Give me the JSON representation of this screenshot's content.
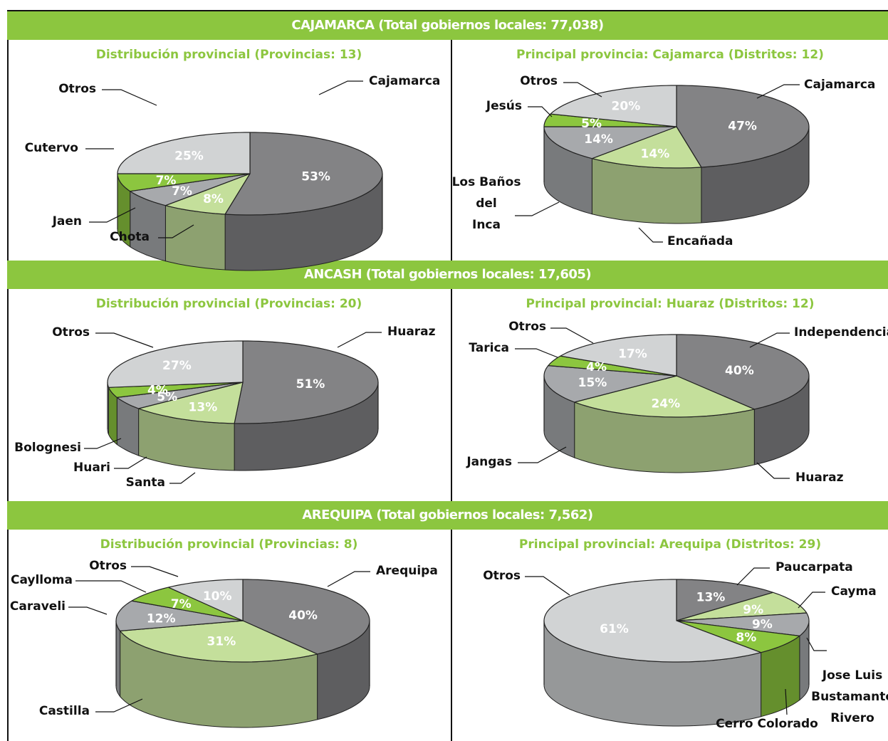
{
  "chart_data": [
    {
      "type": "pie",
      "section": "CAJAMARCA (Total gobiernos locales: 77,038)",
      "title": "Distribución provincial (Provincias: 13)",
      "slices": [
        {
          "label": "Cajamarca",
          "value": 53,
          "color": "#838385"
        },
        {
          "label": "Chota",
          "value": 8,
          "color": "#c4df9b"
        },
        {
          "label": "Jaen",
          "value": 7,
          "color": "#a7a9ac"
        },
        {
          "label": "Cutervo",
          "value": 7,
          "color": "#8cc63f"
        },
        {
          "label": "Otros",
          "value": 25,
          "color": "#d1d3d4"
        }
      ]
    },
    {
      "type": "pie",
      "section": "CAJAMARCA (Total gobiernos locales: 77,038)",
      "title": "Principal provincia: Cajamarca (Distritos: 12)",
      "slices": [
        {
          "label": "Cajamarca",
          "value": 47,
          "color": "#838385"
        },
        {
          "label": "Encañada",
          "value": 14,
          "color": "#c4df9b"
        },
        {
          "label": "Los Baños del Inca",
          "value": 14,
          "color": "#a7a9ac"
        },
        {
          "label": "Jesús",
          "value": 5,
          "color": "#8cc63f"
        },
        {
          "label": "Otros",
          "value": 20,
          "color": "#d1d3d4"
        }
      ]
    },
    {
      "type": "pie",
      "section": "ANCASH (Total gobiernos locales: 17,605)",
      "title": "Distribución provincial (Provincias: 20)",
      "slices": [
        {
          "label": "Huaraz",
          "value": 51,
          "color": "#838385"
        },
        {
          "label": "Santa",
          "value": 13,
          "color": "#c4df9b"
        },
        {
          "label": "Huari",
          "value": 5,
          "color": "#a7a9ac"
        },
        {
          "label": "Bolognesi",
          "value": 4,
          "color": "#8cc63f"
        },
        {
          "label": "Otros",
          "value": 27,
          "color": "#d1d3d4"
        }
      ]
    },
    {
      "type": "pie",
      "section": "ANCASH (Total gobiernos locales: 17,605)",
      "title": "Principal provincial: Huaraz (Distritos: 12)",
      "slices": [
        {
          "label": "Independencia",
          "value": 40,
          "color": "#838385"
        },
        {
          "label": "Huaraz",
          "value": 24,
          "color": "#c4df9b"
        },
        {
          "label": "Jangas",
          "value": 15,
          "color": "#a7a9ac"
        },
        {
          "label": "Tarica",
          "value": 4,
          "color": "#8cc63f"
        },
        {
          "label": "Otros",
          "value": 17,
          "color": "#d1d3d4"
        }
      ]
    },
    {
      "type": "pie",
      "section": "AREQUIPA (Total gobiernos locales: 7,562)",
      "title": "Distribución provincial (Provincias: 8)",
      "slices": [
        {
          "label": "Arequipa",
          "value": 40,
          "color": "#838385"
        },
        {
          "label": "Castilla",
          "value": 31,
          "color": "#c4df9b"
        },
        {
          "label": "Caraveli",
          "value": 12,
          "color": "#a7a9ac"
        },
        {
          "label": "Caylloma",
          "value": 7,
          "color": "#8cc63f"
        },
        {
          "label": "Otros",
          "value": 10,
          "color": "#d1d3d4"
        }
      ]
    },
    {
      "type": "pie",
      "section": "AREQUIPA (Total gobiernos locales: 7,562)",
      "title": "Principal provincial: Arequipa (Distritos: 29)",
      "slices": [
        {
          "label": "Paucarpata",
          "value": 13,
          "color": "#838385"
        },
        {
          "label": "Cayma",
          "value": 9,
          "color": "#c4df9b"
        },
        {
          "label": "Jose Luis Bustamante Rivero",
          "value": 9,
          "color": "#a7a9ac"
        },
        {
          "label": "Cerro Colorado",
          "value": 8,
          "color": "#8cc63f"
        },
        {
          "label": "Otros",
          "value": 61,
          "color": "#d1d3d4"
        }
      ]
    }
  ],
  "sections": [
    {
      "title": "CAJAMARCA (Total gobiernos locales: 77,038)"
    },
    {
      "title": "ANCASH (Total gobiernos locales: 17,605)"
    },
    {
      "title": "AREQUIPA (Total gobiernos locales: 7,562)"
    }
  ]
}
